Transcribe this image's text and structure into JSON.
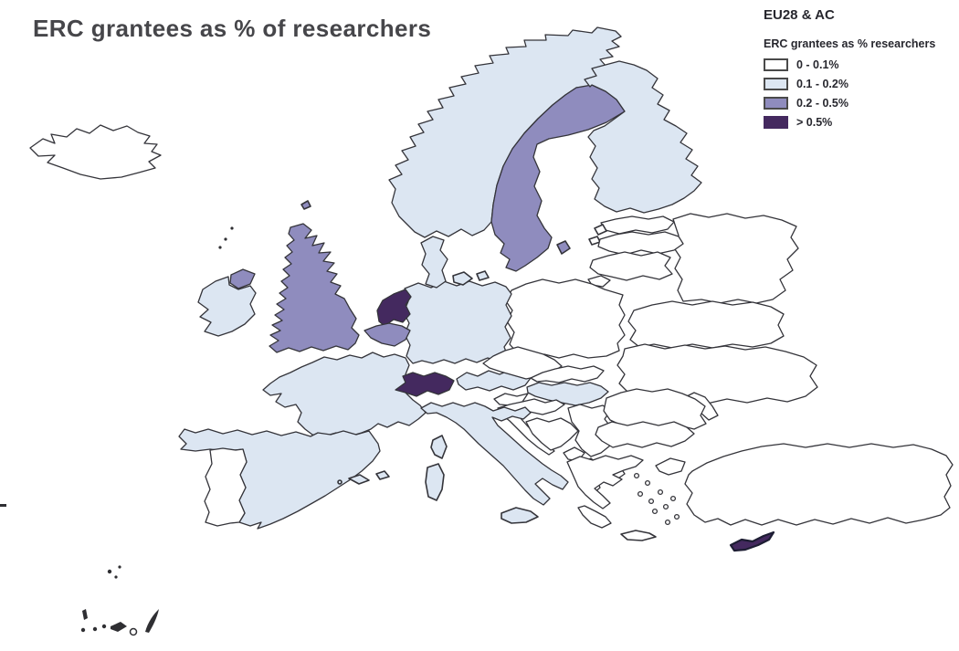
{
  "title": "ERC grantees as % of researchers",
  "legend": {
    "heading": "EU28 & AC",
    "subheading": "ERC grantees as % researchers",
    "classes": [
      {
        "label": "0 - 0.1%",
        "color": "#ffffff",
        "border": "#4a4a4a"
      },
      {
        "label": "0.1 - 0.2%",
        "color": "#dce6f2",
        "border": "#4a4a4a"
      },
      {
        "label": "0.2 - 0.5%",
        "color": "#8f8cbe",
        "border": "#4a4a4a"
      },
      {
        "label": "> 0.5%",
        "color": "#44295f",
        "border": "#44295f"
      }
    ]
  },
  "map": {
    "outline_color": "#34343a",
    "no_data_color": "#ffffff"
  },
  "chart_data": {
    "type": "choropleth",
    "title": "ERC grantees as % of researchers",
    "scope": "EU28 & AC",
    "legend_title": "ERC grantees as % researchers",
    "classes": [
      "0 - 0.1%",
      "0.1 - 0.2%",
      "0.2 - 0.5%",
      "> 0.5%"
    ],
    "class_colors": {
      "0 - 0.1%": "#ffffff",
      "0.1 - 0.2%": "#dce6f2",
      "0.2 - 0.5%": "#8f8cbe",
      "> 0.5%": "#44295f"
    },
    "country_classes": {
      "Iceland": "0 - 0.1%",
      "Portugal": "0 - 0.1%",
      "Estonia": "0 - 0.1%",
      "Latvia": "0 - 0.1%",
      "Lithuania": "0 - 0.1%",
      "Poland": "0 - 0.1%",
      "Czech Republic": "0 - 0.1%",
      "Slovakia": "0 - 0.1%",
      "Slovenia": "0 - 0.1%",
      "Croatia": "0 - 0.1%",
      "Romania": "0 - 0.1%",
      "Bulgaria": "0 - 0.1%",
      "Greece": "0 - 0.1%",
      "Turkey": "0 - 0.1%",
      "Norway": "0.1 - 0.2%",
      "Finland": "0.1 - 0.2%",
      "Denmark": "0.1 - 0.2%",
      "Ireland": "0.1 - 0.2%",
      "Germany": "0.1 - 0.2%",
      "France": "0.1 - 0.2%",
      "Spain": "0.1 - 0.2%",
      "Austria": "0.1 - 0.2%",
      "Hungary": "0.1 - 0.2%",
      "Italy": "0.1 - 0.2%",
      "United Kingdom": "0.2 - 0.5%",
      "Sweden": "0.2 - 0.5%",
      "Belgium": "0.2 - 0.5%",
      "Netherlands": "> 0.5%",
      "Switzerland": "> 0.5%",
      "Cyprus": "> 0.5%"
    },
    "non_member_regions_shown": [
      "Russia",
      "Belarus",
      "Ukraine",
      "Moldova",
      "Kaliningrad (RU)",
      "Bosnia and Herzegovina",
      "Serbia",
      "Montenegro",
      "Albania",
      "North Macedonia"
    ]
  }
}
